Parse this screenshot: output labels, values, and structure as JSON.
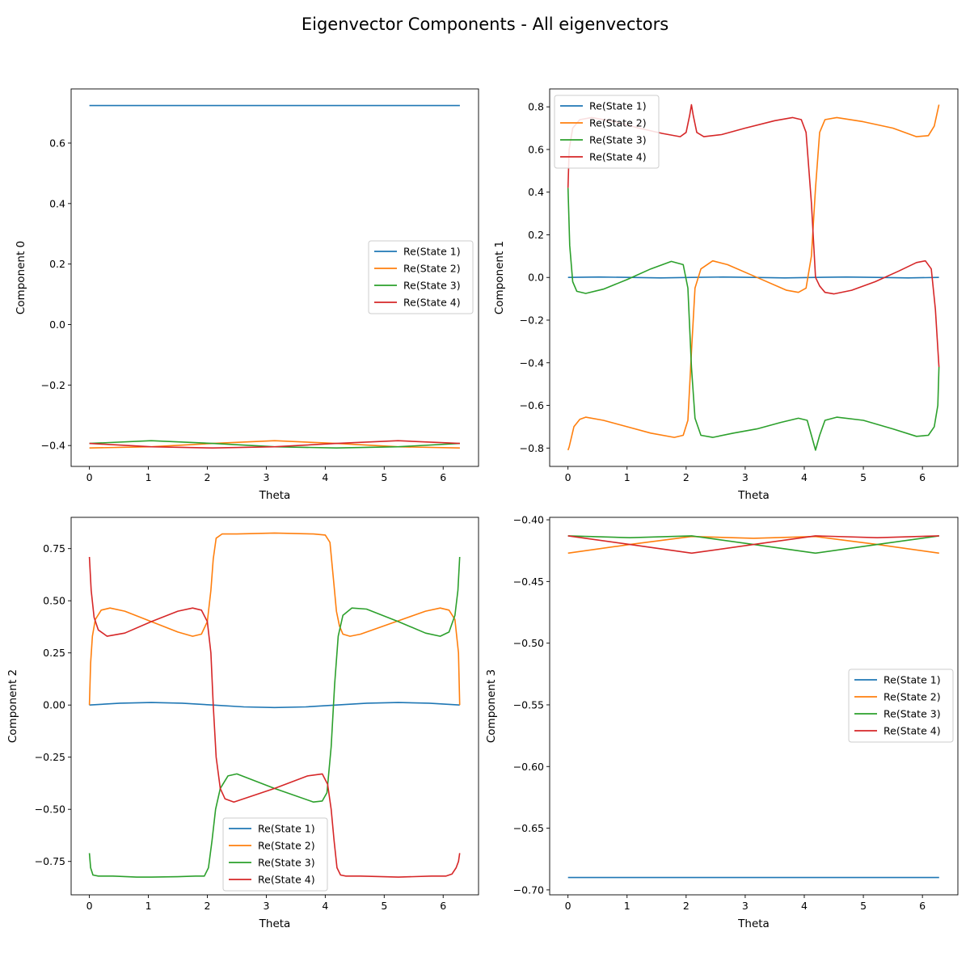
{
  "title": "Eigenvector Components - All eigenvectors",
  "colors": {
    "state1": "#1f77b4",
    "state2": "#ff7f0e",
    "state3": "#2ca02c",
    "state4": "#d62728"
  },
  "chart_data": [
    {
      "type": "line",
      "title": "",
      "xlabel": "Theta",
      "ylabel": "Component 0",
      "xlim": [
        -0.31,
        6.6
      ],
      "ylim": [
        -0.469,
        0.779
      ],
      "xticks": [
        0,
        1,
        2,
        3,
        4,
        5,
        6
      ],
      "yticks": [
        -0.4,
        -0.2,
        0.0,
        0.2,
        0.4,
        0.6
      ],
      "yticklabels": [
        "−0.4",
        "−0.2",
        "0.0",
        "0.2",
        "0.4",
        "0.6"
      ],
      "legend": "center-right",
      "series": [
        {
          "name": "Re(State 1)",
          "x": [
            0,
            6.283
          ],
          "y": [
            0.724,
            0.724
          ]
        },
        {
          "name": "Re(State 2)",
          "x": [
            0,
            1.047,
            2.094,
            3.142,
            4.189,
            5.236,
            6.283
          ],
          "y": [
            -0.408,
            -0.404,
            -0.393,
            -0.384,
            -0.393,
            -0.404,
            -0.408
          ]
        },
        {
          "name": "Re(State 3)",
          "x": [
            0,
            1.047,
            2.094,
            3.142,
            4.189,
            5.236,
            6.283
          ],
          "y": [
            -0.393,
            -0.384,
            -0.393,
            -0.404,
            -0.408,
            -0.404,
            -0.393
          ]
        },
        {
          "name": "Re(State 4)",
          "x": [
            0,
            1.047,
            2.094,
            3.142,
            4.189,
            5.236,
            6.283
          ],
          "y": [
            -0.393,
            -0.404,
            -0.408,
            -0.404,
            -0.393,
            -0.384,
            -0.393
          ]
        }
      ]
    },
    {
      "type": "line",
      "title": "",
      "xlabel": "Theta",
      "ylabel": "Component 1",
      "xlim": [
        -0.31,
        6.6
      ],
      "ylim": [
        -0.886,
        0.884
      ],
      "xticks": [
        0,
        1,
        2,
        3,
        4,
        5,
        6
      ],
      "yticks": [
        -0.8,
        -0.6,
        -0.4,
        -0.2,
        0.0,
        0.2,
        0.4,
        0.6,
        0.8
      ],
      "yticklabels": [
        "−0.8",
        "−0.6",
        "−0.4",
        "−0.2",
        "0.0",
        "0.2",
        "0.4",
        "0.6",
        "0.8"
      ],
      "legend": "top-left",
      "series": [
        {
          "name": "Re(State 1)",
          "x": [
            0,
            0.52,
            1.05,
            1.57,
            2.09,
            2.62,
            3.14,
            3.67,
            4.19,
            4.71,
            5.24,
            5.76,
            6.28
          ],
          "y": [
            0,
            0.002,
            0,
            -0.002,
            0,
            0.002,
            0,
            -0.002,
            0,
            0.002,
            0,
            -0.002,
            0
          ]
        },
        {
          "name": "Re(State 2)",
          "x": [
            0,
            0.02,
            0.1,
            0.2,
            0.3,
            0.6,
            1.0,
            1.4,
            1.8,
            1.95,
            2.03,
            2.09,
            2.15,
            2.25,
            2.45,
            2.7,
            3.2,
            3.7,
            3.9,
            4.03,
            4.12,
            4.19,
            4.26,
            4.35,
            4.55,
            5.0,
            5.5,
            5.9,
            6.1,
            6.2,
            6.28
          ],
          "y": [
            -0.81,
            -0.795,
            -0.7,
            -0.665,
            -0.655,
            -0.67,
            -0.7,
            -0.73,
            -0.75,
            -0.74,
            -0.67,
            -0.35,
            -0.05,
            0.04,
            0.078,
            0.06,
            0.0,
            -0.06,
            -0.07,
            -0.05,
            0.1,
            0.42,
            0.68,
            0.74,
            0.75,
            0.73,
            0.7,
            0.66,
            0.665,
            0.71,
            0.81
          ]
        },
        {
          "name": "Re(State 3)",
          "x": [
            0,
            0.03,
            0.08,
            0.15,
            0.3,
            0.6,
            1.0,
            1.4,
            1.75,
            1.95,
            2.03,
            2.09,
            2.15,
            2.25,
            2.45,
            2.8,
            3.2,
            3.6,
            3.9,
            4.05,
            4.12,
            4.19,
            4.26,
            4.35,
            4.55,
            5.0,
            5.5,
            5.9,
            6.1,
            6.2,
            6.26,
            6.28
          ],
          "y": [
            0.42,
            0.15,
            -0.02,
            -0.065,
            -0.075,
            -0.055,
            -0.01,
            0.04,
            0.075,
            0.06,
            -0.05,
            -0.42,
            -0.66,
            -0.74,
            -0.75,
            -0.73,
            -0.71,
            -0.68,
            -0.66,
            -0.67,
            -0.74,
            -0.81,
            -0.74,
            -0.67,
            -0.655,
            -0.67,
            -0.71,
            -0.745,
            -0.74,
            -0.7,
            -0.6,
            -0.42
          ]
        },
        {
          "name": "Re(State 4)",
          "x": [
            0,
            0.02,
            0.08,
            0.2,
            0.4,
            0.8,
            1.2,
            1.6,
            1.9,
            2.0,
            2.06,
            2.09,
            2.12,
            2.18,
            2.3,
            2.6,
            3.0,
            3.5,
            3.8,
            3.95,
            4.03,
            4.12,
            4.19,
            4.26,
            4.35,
            4.5,
            4.8,
            5.2,
            5.6,
            5.9,
            6.05,
            6.15,
            6.22,
            6.28
          ],
          "y": [
            0.42,
            0.6,
            0.7,
            0.74,
            0.75,
            0.73,
            0.7,
            0.675,
            0.66,
            0.68,
            0.76,
            0.81,
            0.76,
            0.68,
            0.66,
            0.67,
            0.7,
            0.735,
            0.75,
            0.74,
            0.68,
            0.35,
            0.0,
            -0.04,
            -0.07,
            -0.077,
            -0.06,
            -0.02,
            0.03,
            0.07,
            0.078,
            0.04,
            -0.15,
            -0.42
          ]
        }
      ]
    },
    {
      "type": "line",
      "title": "",
      "xlabel": "Theta",
      "ylabel": "Component 2",
      "xlim": [
        -0.31,
        6.6
      ],
      "ylim": [
        -0.91,
        0.9
      ],
      "xticks": [
        0,
        1,
        2,
        3,
        4,
        5,
        6
      ],
      "yticks": [
        -0.75,
        -0.5,
        -0.25,
        0.0,
        0.25,
        0.5,
        0.75
      ],
      "yticklabels": [
        "−0.75",
        "−0.50",
        "−0.25",
        "0.00",
        "0.25",
        "0.50",
        "0.75"
      ],
      "legend": "bottom-center",
      "series": [
        {
          "name": "Re(State 1)",
          "x": [
            0,
            0.52,
            1.05,
            1.57,
            2.09,
            2.62,
            3.14,
            3.67,
            4.19,
            4.71,
            5.24,
            5.76,
            6.28
          ],
          "y": [
            0,
            0.009,
            0.012,
            0.009,
            0,
            -0.009,
            -0.012,
            -0.009,
            0,
            0.009,
            0.012,
            0.009,
            0
          ]
        },
        {
          "name": "Re(State 2)",
          "x": [
            0,
            0.02,
            0.05,
            0.1,
            0.2,
            0.35,
            0.6,
            1.05,
            1.5,
            1.75,
            1.9,
            2.0,
            2.06,
            2.1,
            2.15,
            2.25,
            2.5,
            3.14,
            3.8,
            4.0,
            4.08,
            4.14,
            4.19,
            4.24,
            4.3,
            4.42,
            4.6,
            5.2,
            5.7,
            5.95,
            6.1,
            6.2,
            6.26,
            6.28
          ],
          "y": [
            0,
            0.2,
            0.33,
            0.41,
            0.455,
            0.465,
            0.45,
            0.4,
            0.35,
            0.33,
            0.34,
            0.4,
            0.55,
            0.7,
            0.8,
            0.82,
            0.82,
            0.825,
            0.82,
            0.815,
            0.78,
            0.6,
            0.45,
            0.38,
            0.34,
            0.33,
            0.34,
            0.4,
            0.45,
            0.465,
            0.455,
            0.41,
            0.25,
            0
          ]
        },
        {
          "name": "Re(State 3)",
          "x": [
            0,
            0.02,
            0.06,
            0.15,
            0.4,
            0.8,
            1.05,
            1.5,
            1.8,
            1.95,
            2.02,
            2.08,
            2.14,
            2.22,
            2.35,
            2.5,
            3.14,
            3.8,
            3.95,
            4.03,
            4.1,
            4.16,
            4.22,
            4.3,
            4.45,
            4.7,
            5.24,
            5.7,
            5.95,
            6.1,
            6.2,
            6.25,
            6.28
          ],
          "y": [
            -0.71,
            -0.78,
            -0.815,
            -0.82,
            -0.82,
            -0.825,
            -0.825,
            -0.823,
            -0.82,
            -0.82,
            -0.78,
            -0.65,
            -0.5,
            -0.4,
            -0.34,
            -0.33,
            -0.4,
            -0.465,
            -0.46,
            -0.42,
            -0.2,
            0.1,
            0.33,
            0.43,
            0.465,
            0.46,
            0.4,
            0.345,
            0.33,
            0.35,
            0.43,
            0.55,
            0.71
          ]
        },
        {
          "name": "Re(State 4)",
          "x": [
            0,
            0.03,
            0.08,
            0.15,
            0.3,
            0.6,
            1.05,
            1.5,
            1.75,
            1.9,
            2.0,
            2.06,
            2.1,
            2.15,
            2.22,
            2.3,
            2.45,
            3.14,
            3.7,
            3.95,
            4.04,
            4.1,
            4.15,
            4.2,
            4.26,
            4.35,
            4.6,
            5.24,
            5.8,
            6.05,
            6.15,
            6.22,
            6.26,
            6.28
          ],
          "y": [
            0.71,
            0.55,
            0.42,
            0.36,
            0.33,
            0.345,
            0.4,
            0.45,
            0.465,
            0.455,
            0.4,
            0.25,
            0.0,
            -0.25,
            -0.4,
            -0.45,
            -0.465,
            -0.4,
            -0.34,
            -0.33,
            -0.38,
            -0.5,
            -0.65,
            -0.78,
            -0.815,
            -0.82,
            -0.82,
            -0.825,
            -0.82,
            -0.82,
            -0.81,
            -0.78,
            -0.75,
            -0.71
          ]
        }
      ]
    },
    {
      "type": "line",
      "title": "",
      "xlabel": "Theta",
      "ylabel": "Component 3",
      "xlim": [
        -0.31,
        6.6
      ],
      "ylim": [
        -0.704,
        -0.398
      ],
      "xticks": [
        0,
        1,
        2,
        3,
        4,
        5,
        6
      ],
      "yticks": [
        -0.7,
        -0.65,
        -0.6,
        -0.55,
        -0.5,
        -0.45,
        -0.4
      ],
      "yticklabels": [
        "−0.70",
        "−0.65",
        "−0.60",
        "−0.55",
        "−0.50",
        "−0.45",
        "−0.40"
      ],
      "legend": "center-right",
      "series": [
        {
          "name": "Re(State 1)",
          "x": [
            0,
            6.283
          ],
          "y": [
            -0.69,
            -0.69
          ]
        },
        {
          "name": "Re(State 2)",
          "x": [
            0,
            1.047,
            2.094,
            3.142,
            4.189,
            5.236,
            6.283
          ],
          "y": [
            -0.427,
            -0.42,
            -0.4135,
            -0.415,
            -0.4135,
            -0.42,
            -0.427
          ]
        },
        {
          "name": "Re(State 3)",
          "x": [
            0,
            1.047,
            2.094,
            3.142,
            4.189,
            5.236,
            6.283
          ],
          "y": [
            -0.413,
            -0.4145,
            -0.413,
            -0.42,
            -0.427,
            -0.42,
            -0.413
          ]
        },
        {
          "name": "Re(State 4)",
          "x": [
            0,
            1.047,
            2.094,
            3.142,
            4.189,
            5.236,
            6.283
          ],
          "y": [
            -0.413,
            -0.42,
            -0.427,
            -0.42,
            -0.413,
            -0.4145,
            -0.413
          ]
        }
      ]
    }
  ]
}
